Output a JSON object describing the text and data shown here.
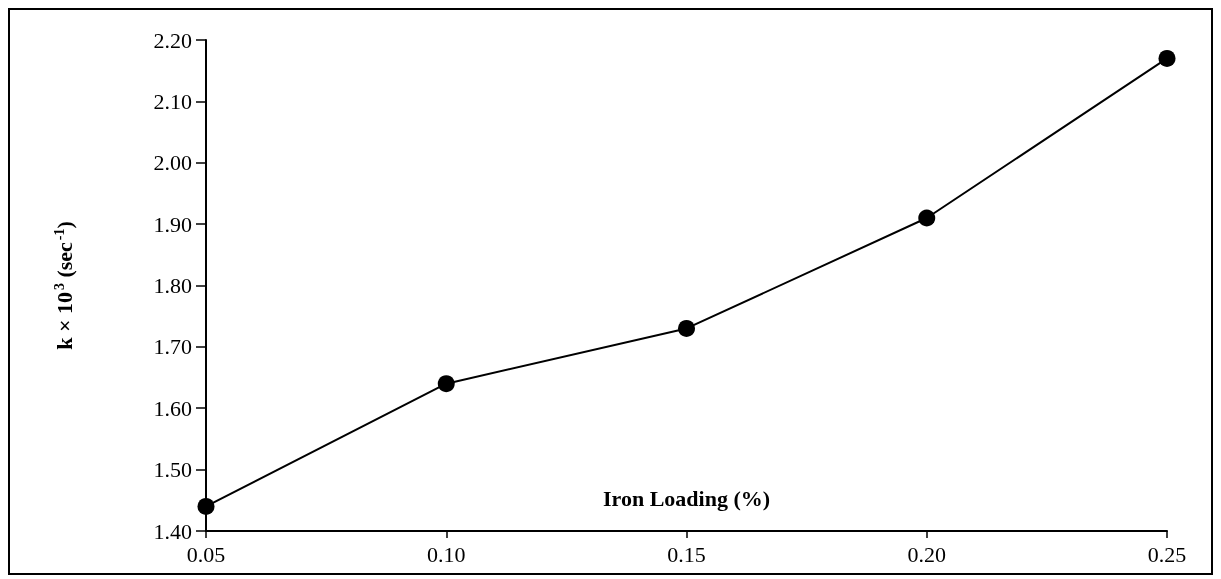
{
  "chart_data": {
    "type": "line",
    "xlabel": "Iron Loading (%)",
    "ylabel": "k × 10$^{3}$ (sec$^{-1}$)",
    "x": [
      0.05,
      0.1,
      0.15,
      0.2,
      0.25
    ],
    "series": [
      {
        "color": "#000000",
        "values": [
          1.44,
          1.64,
          1.73,
          1.91,
          2.17
        ]
      }
    ],
    "xlim": [
      0.05,
      0.25
    ],
    "xticks": [
      {
        "value": 0.05,
        "label": "0.05"
      },
      {
        "value": 0.1,
        "label": "0.10"
      },
      {
        "value": 0.15,
        "label": "0.15"
      },
      {
        "value": 0.2,
        "label": "0.20"
      },
      {
        "value": 0.25,
        "label": "0.25"
      }
    ],
    "ylim": [
      1.4,
      2.2
    ],
    "yticks": [
      {
        "value": 1.4,
        "label": "1.40"
      },
      {
        "value": 1.5,
        "label": "1.50"
      },
      {
        "value": 1.6,
        "label": "1.60"
      },
      {
        "value": 1.7,
        "label": "1.70"
      },
      {
        "value": 1.8,
        "label": "1.80"
      },
      {
        "value": 1.9,
        "label": "1.90"
      },
      {
        "value": 2.0,
        "label": "2.00"
      },
      {
        "value": 2.1,
        "label": "2.10"
      },
      {
        "value": 2.2,
        "label": "2.20"
      }
    ],
    "grid": false,
    "marker": "circle",
    "line_style": "solid"
  }
}
